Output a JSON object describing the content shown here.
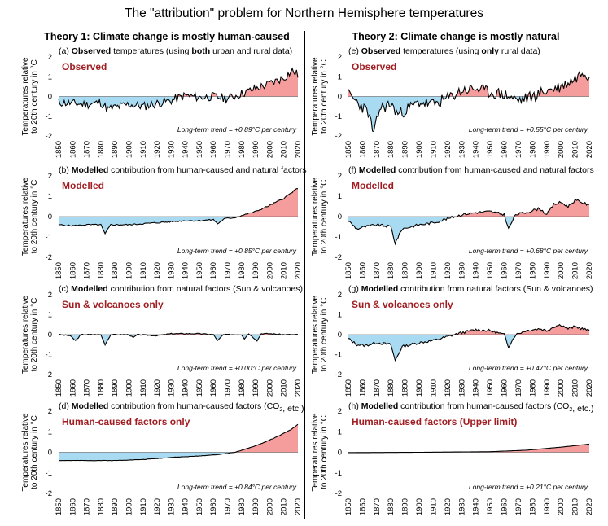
{
  "title": "The \"attribution\" problem for Northern Hemisphere temperatures",
  "columns": [
    {
      "title": "Theory 1: Climate change is mostly human-caused"
    },
    {
      "title": "Theory 2: Climate change is mostly natural"
    }
  ],
  "colors": {
    "positive_fill": "#f59c9c",
    "negative_fill": "#a8dbf1",
    "line": "#000000",
    "label": "#a01e22"
  },
  "axis": {
    "ylabel_line1": "Temperatures relative",
    "ylabel_line2": "to 20th century in °C",
    "xticks": [
      "1850",
      "1860",
      "1870",
      "1880",
      "1890",
      "1900",
      "1910",
      "1920",
      "1930",
      "1940",
      "1950",
      "1960",
      "1970",
      "1980",
      "1990",
      "2000",
      "2010",
      "2020"
    ],
    "yticks": [
      "2",
      "1",
      "0",
      "-1",
      "-2"
    ]
  },
  "chart_data": [
    {
      "id": "a",
      "type": "area",
      "column": 0,
      "caption_prefix": "(a) ",
      "caption_bold": "Observed",
      "caption_mid": " temperatures (using ",
      "caption_bold2": "both",
      "caption_suffix": " urban and rural data)",
      "label": "Observed",
      "trend_text": "Long-term trend = +0.89°C per century",
      "xlim": [
        1850,
        2020
      ],
      "ylim": [
        -2,
        2
      ],
      "shape": "observed",
      "trend": 0.0089,
      "noise": 0.28,
      "seed": 11,
      "keypoints": [
        [
          1850,
          -0.3
        ],
        [
          1860,
          -0.35
        ],
        [
          1870,
          -0.4
        ],
        [
          1880,
          -0.3
        ],
        [
          1885,
          -0.65
        ],
        [
          1890,
          -0.55
        ],
        [
          1900,
          -0.4
        ],
        [
          1910,
          -0.5
        ],
        [
          1920,
          -0.35
        ],
        [
          1930,
          -0.2
        ],
        [
          1940,
          0.05
        ],
        [
          1950,
          -0.05
        ],
        [
          1960,
          0.0
        ],
        [
          1970,
          -0.1
        ],
        [
          1980,
          0.15
        ],
        [
          1990,
          0.4
        ],
        [
          2000,
          0.65
        ],
        [
          2010,
          0.95
        ],
        [
          2016,
          1.3
        ],
        [
          2020,
          1.1
        ]
      ]
    },
    {
      "id": "e",
      "type": "area",
      "column": 1,
      "caption_prefix": "(e) ",
      "caption_bold": "Observed",
      "caption_mid": " temperatures (using ",
      "caption_bold2": "only",
      "caption_suffix": " rural data)",
      "label": "Observed",
      "trend_text": "Long-term trend = +0.55°C per century",
      "xlim": [
        1850,
        2020
      ],
      "ylim": [
        -2,
        2
      ],
      "shape": "observed",
      "trend": 0.0055,
      "noise": 0.38,
      "seed": 23,
      "keypoints": [
        [
          1850,
          0.1
        ],
        [
          1858,
          -0.4
        ],
        [
          1864,
          -0.8
        ],
        [
          1868,
          -1.95
        ],
        [
          1872,
          -0.6
        ],
        [
          1880,
          -0.4
        ],
        [
          1885,
          -0.9
        ],
        [
          1890,
          -0.7
        ],
        [
          1900,
          -0.3
        ],
        [
          1910,
          -0.4
        ],
        [
          1920,
          -0.1
        ],
        [
          1930,
          0.3
        ],
        [
          1940,
          0.4
        ],
        [
          1950,
          0.2
        ],
        [
          1960,
          0.1
        ],
        [
          1970,
          -0.2
        ],
        [
          1980,
          0.0
        ],
        [
          1990,
          0.3
        ],
        [
          2000,
          0.5
        ],
        [
          2010,
          0.9
        ],
        [
          2016,
          1.3
        ],
        [
          2020,
          1.0
        ]
      ]
    },
    {
      "id": "b",
      "type": "area",
      "column": 0,
      "caption_prefix": "(b) ",
      "caption_bold": "Modelled",
      "caption_mid": " contribution from human-caused and natural factors",
      "caption_bold2": "",
      "caption_suffix": "",
      "label": "Modelled",
      "trend_text": "Long-term trend = +0.85°C per century",
      "xlim": [
        1850,
        2020
      ],
      "ylim": [
        -2,
        2
      ],
      "shape": "smooth",
      "trend": 0.0085,
      "noise": 0.04,
      "seed": 5,
      "keypoints": [
        [
          1850,
          -0.4
        ],
        [
          1860,
          -0.45
        ],
        [
          1870,
          -0.4
        ],
        [
          1880,
          -0.4
        ],
        [
          1883,
          -0.85
        ],
        [
          1887,
          -0.4
        ],
        [
          1900,
          -0.4
        ],
        [
          1910,
          -0.35
        ],
        [
          1920,
          -0.3
        ],
        [
          1930,
          -0.25
        ],
        [
          1940,
          -0.2
        ],
        [
          1950,
          -0.2
        ],
        [
          1960,
          -0.15
        ],
        [
          1963,
          -0.35
        ],
        [
          1968,
          -0.1
        ],
        [
          1975,
          -0.05
        ],
        [
          1980,
          0.05
        ],
        [
          1990,
          0.25
        ],
        [
          2000,
          0.55
        ],
        [
          2010,
          0.9
        ],
        [
          2020,
          1.4
        ]
      ]
    },
    {
      "id": "f",
      "type": "area",
      "column": 1,
      "caption_prefix": "(f) ",
      "caption_bold": "Modelled",
      "caption_mid": " contribution from human-caused and natural factors",
      "caption_bold2": "",
      "caption_suffix": "",
      "label": "Modelled",
      "trend_text": "Long-term trend = +0.68°C per century",
      "xlim": [
        1850,
        2020
      ],
      "ylim": [
        -2,
        2
      ],
      "shape": "smooth",
      "trend": 0.0068,
      "noise": 0.08,
      "seed": 9,
      "keypoints": [
        [
          1850,
          -0.2
        ],
        [
          1856,
          -0.6
        ],
        [
          1862,
          -0.5
        ],
        [
          1870,
          -0.4
        ],
        [
          1880,
          -0.5
        ],
        [
          1883,
          -1.3
        ],
        [
          1888,
          -0.6
        ],
        [
          1900,
          -0.4
        ],
        [
          1910,
          -0.3
        ],
        [
          1920,
          -0.1
        ],
        [
          1930,
          0.1
        ],
        [
          1940,
          0.2
        ],
        [
          1950,
          0.25
        ],
        [
          1960,
          0.1
        ],
        [
          1963,
          -0.6
        ],
        [
          1968,
          0.1
        ],
        [
          1975,
          0.2
        ],
        [
          1985,
          0.4
        ],
        [
          1990,
          0.1
        ],
        [
          1995,
          0.6
        ],
        [
          2000,
          0.7
        ],
        [
          2005,
          0.5
        ],
        [
          2010,
          0.8
        ],
        [
          2015,
          0.7
        ],
        [
          2020,
          0.55
        ]
      ]
    },
    {
      "id": "c",
      "type": "area",
      "column": 0,
      "caption_prefix": "(c) ",
      "caption_bold": "Modelled",
      "caption_mid": " contribution from natural factors (Sun & volcanoes)",
      "caption_bold2": "",
      "caption_suffix": "",
      "label": "Sun & volcanoes only",
      "trend_text": "Long-term trend = +0.00°C per century",
      "xlim": [
        1850,
        2020
      ],
      "ylim": [
        -2,
        2
      ],
      "shape": "smooth",
      "trend": 0.0,
      "noise": 0.03,
      "seed": 3,
      "keypoints": [
        [
          1850,
          0.0
        ],
        [
          1858,
          -0.05
        ],
        [
          1862,
          -0.3
        ],
        [
          1866,
          0.0
        ],
        [
          1880,
          0.0
        ],
        [
          1883,
          -0.5
        ],
        [
          1887,
          0.0
        ],
        [
          1900,
          0.0
        ],
        [
          1903,
          -0.15
        ],
        [
          1906,
          0.0
        ],
        [
          1920,
          -0.05
        ],
        [
          1930,
          0.05
        ],
        [
          1940,
          0.05
        ],
        [
          1950,
          0.05
        ],
        [
          1960,
          0.0
        ],
        [
          1963,
          -0.3
        ],
        [
          1967,
          0.0
        ],
        [
          1980,
          0.0
        ],
        [
          1982,
          -0.2
        ],
        [
          1985,
          0.05
        ],
        [
          1991,
          -0.3
        ],
        [
          1994,
          0.05
        ],
        [
          2000,
          0.05
        ],
        [
          2010,
          0.0
        ],
        [
          2020,
          0.0
        ]
      ]
    },
    {
      "id": "g",
      "type": "area",
      "column": 1,
      "caption_prefix": "(g) ",
      "caption_bold": "Modelled",
      "caption_mid": " contribution from natural factors (Sun & volcanoes)",
      "caption_bold2": "",
      "caption_suffix": "",
      "label": "Sun & volcanoes only",
      "trend_text": "Long-term trend = +0.47°C per century",
      "xlim": [
        1850,
        2020
      ],
      "ylim": [
        -2,
        2
      ],
      "shape": "smooth",
      "trend": 0.0047,
      "noise": 0.08,
      "seed": 13,
      "keypoints": [
        [
          1850,
          -0.2
        ],
        [
          1856,
          -0.5
        ],
        [
          1862,
          -0.55
        ],
        [
          1870,
          -0.4
        ],
        [
          1880,
          -0.5
        ],
        [
          1883,
          -1.3
        ],
        [
          1888,
          -0.6
        ],
        [
          1900,
          -0.4
        ],
        [
          1910,
          -0.3
        ],
        [
          1920,
          -0.1
        ],
        [
          1930,
          0.1
        ],
        [
          1940,
          0.25
        ],
        [
          1950,
          0.2
        ],
        [
          1960,
          0.0
        ],
        [
          1963,
          -0.6
        ],
        [
          1968,
          0.0
        ],
        [
          1975,
          0.2
        ],
        [
          1985,
          0.3
        ],
        [
          1990,
          0.2
        ],
        [
          1995,
          0.4
        ],
        [
          2000,
          0.5
        ],
        [
          2005,
          0.3
        ],
        [
          2010,
          0.4
        ],
        [
          2015,
          0.3
        ],
        [
          2020,
          0.2
        ]
      ]
    },
    {
      "id": "d",
      "type": "area",
      "column": 0,
      "caption_prefix": "(d) ",
      "caption_bold": "Modelled",
      "caption_mid": " contribution from human-caused factors (CO",
      "caption_bold2": "",
      "caption_suffix": ", etc.)",
      "label": "Human-caused factors only",
      "trend_text": "Long-term trend = +0.84°C per century",
      "xlim": [
        1850,
        2020
      ],
      "ylim": [
        -2,
        2
      ],
      "shape": "smooth",
      "trend": 0.0084,
      "noise": 0.01,
      "seed": 2,
      "keypoints": [
        [
          1850,
          -0.4
        ],
        [
          1870,
          -0.4
        ],
        [
          1890,
          -0.4
        ],
        [
          1910,
          -0.35
        ],
        [
          1930,
          -0.25
        ],
        [
          1950,
          -0.18
        ],
        [
          1965,
          -0.1
        ],
        [
          1975,
          0.0
        ],
        [
          1985,
          0.2
        ],
        [
          1995,
          0.45
        ],
        [
          2005,
          0.75
        ],
        [
          2015,
          1.1
        ],
        [
          2020,
          1.35
        ]
      ]
    },
    {
      "id": "h",
      "type": "area",
      "column": 1,
      "caption_prefix": "(h) ",
      "caption_bold": "Modelled",
      "caption_mid": " contribution from human-caused factors (CO",
      "caption_bold2": "",
      "caption_suffix": ", etc.)",
      "label": "Human-caused factors (Upper limit)",
      "trend_text": "Long-term trend = +0.21°C per century",
      "xlim": [
        1850,
        2020
      ],
      "ylim": [
        -2,
        2
      ],
      "shape": "smooth",
      "trend": 0.0021,
      "noise": 0.0,
      "seed": 1,
      "keypoints": [
        [
          1850,
          -0.02
        ],
        [
          1900,
          0.0
        ],
        [
          1950,
          0.03
        ],
        [
          1975,
          0.1
        ],
        [
          2000,
          0.25
        ],
        [
          2020,
          0.4
        ]
      ]
    }
  ]
}
